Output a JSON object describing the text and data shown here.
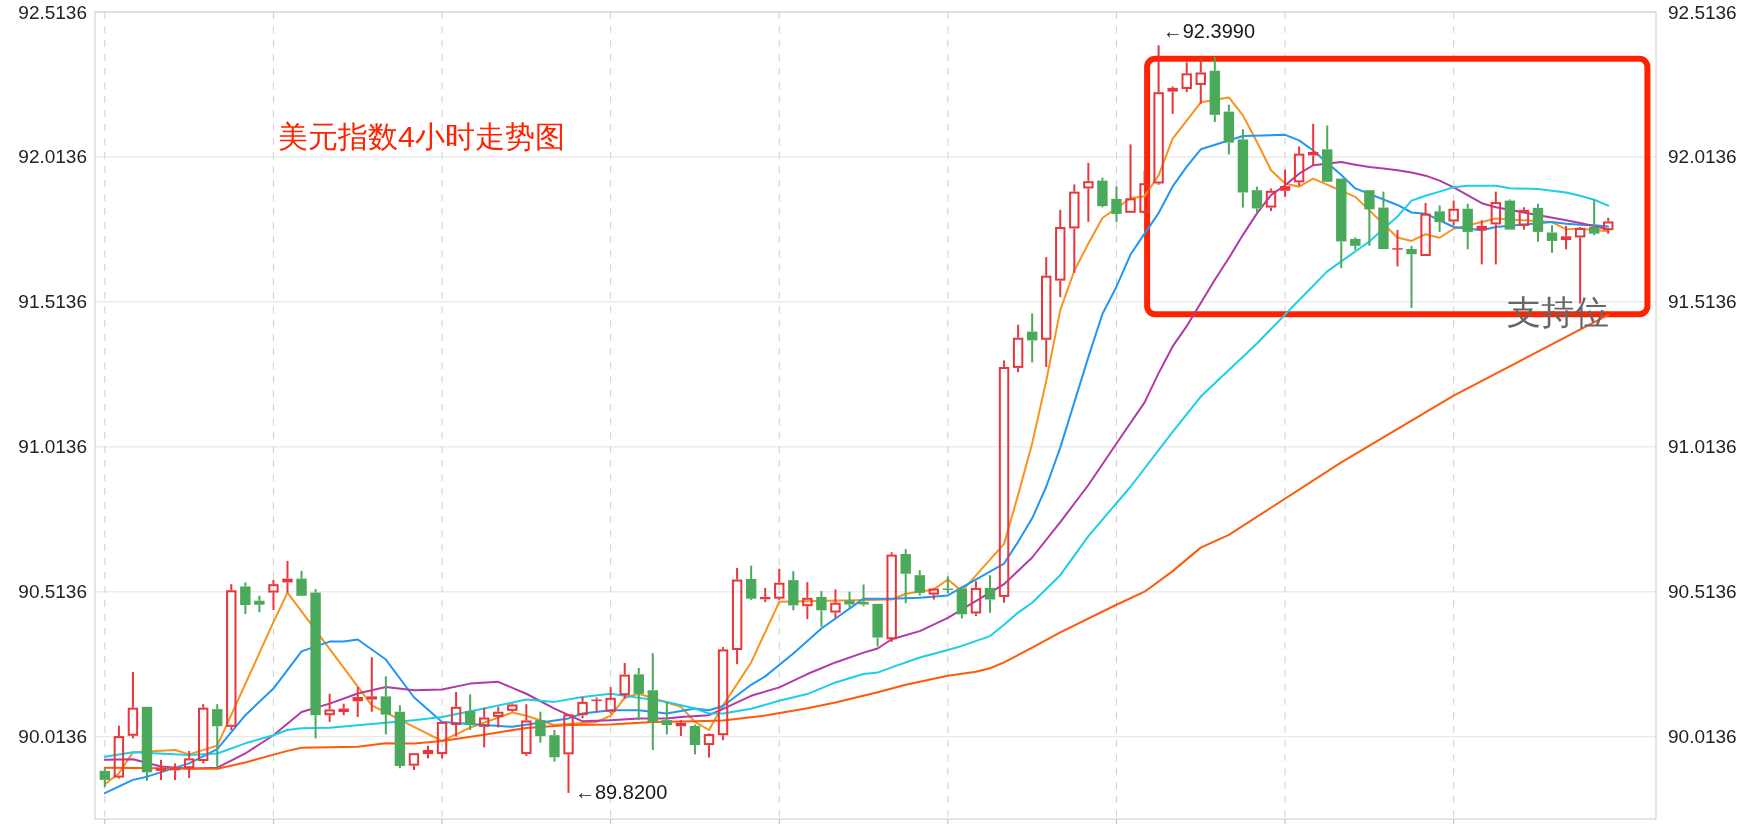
{
  "chart_data": {
    "type": "candlestick",
    "title": "美元指数4小时走势图",
    "categories": [
      null,
      null,
      null,
      null,
      null,
      null,
      null,
      null,
      null,
      null,
      null,
      null,
      null,
      null,
      null,
      null,
      null,
      null,
      null,
      null,
      null,
      null,
      null,
      null,
      null,
      null,
      null,
      null,
      null,
      null,
      null,
      null,
      null,
      null,
      null,
      null,
      null,
      null,
      null,
      null,
      null,
      null,
      null,
      null,
      null,
      null,
      null,
      null,
      null,
      null,
      null,
      null,
      null,
      null,
      null,
      null,
      null,
      null,
      null,
      null,
      null,
      null,
      null,
      null,
      null,
      null,
      null,
      null,
      null,
      null,
      null,
      null,
      null,
      null,
      null,
      null,
      null,
      null,
      null,
      null,
      null,
      null,
      null,
      null,
      null,
      null,
      null,
      null,
      null,
      null,
      null,
      null,
      null,
      null,
      null,
      null,
      null,
      null,
      null,
      null,
      null,
      null,
      null,
      null,
      null,
      null,
      null,
      null
    ],
    "ylim": [
      89.73,
      92.5136
    ],
    "yticks": [
      90.0136,
      90.5136,
      91.0136,
      91.5136,
      92.0136,
      92.5136
    ],
    "y2lim": [
      89.73,
      92.5136
    ],
    "y2ticks": [
      90.0136,
      90.5136,
      91.0136,
      91.5136,
      92.0136,
      92.5136
    ],
    "tick_labels": "y",
    "grid": true,
    "ohlc": [
      [
        89.896,
        89.905,
        89.84,
        89.865
      ],
      [
        89.873,
        90.052,
        89.869,
        90.016
      ],
      [
        90.017,
        90.237,
        90.008,
        90.114
      ],
      [
        90.117,
        90.117,
        89.862,
        89.891
      ],
      [
        89.896,
        89.934,
        89.864,
        89.905
      ],
      [
        89.898,
        89.922,
        89.864,
        89.905
      ],
      [
        89.905,
        89.965,
        89.871,
        89.939
      ],
      [
        89.93,
        90.126,
        89.922,
        90.114
      ],
      [
        90.109,
        90.126,
        89.907,
        90.05
      ],
      [
        90.048,
        90.54,
        90.037,
        90.519
      ],
      [
        90.532,
        90.546,
        90.437,
        90.468
      ],
      [
        90.483,
        90.5,
        90.443,
        90.469
      ],
      [
        90.511,
        90.555,
        90.451,
        90.54
      ],
      [
        90.546,
        90.62,
        90.511,
        90.559
      ],
      [
        90.559,
        90.586,
        90.5,
        90.5
      ],
      [
        90.511,
        90.523,
        90.008,
        90.088
      ],
      [
        90.088,
        90.162,
        90.065,
        90.108
      ],
      [
        90.099,
        90.128,
        90.088,
        90.111
      ],
      [
        90.136,
        90.185,
        90.082,
        90.151
      ],
      [
        90.142,
        90.288,
        90.1,
        90.153
      ],
      [
        90.153,
        90.222,
        90.022,
        90.09
      ],
      [
        90.1,
        90.122,
        89.905,
        89.913
      ],
      [
        89.914,
        89.957,
        89.899,
        89.957
      ],
      [
        89.954,
        89.983,
        89.939,
        89.968
      ],
      [
        89.954,
        90.065,
        89.939,
        90.065
      ],
      [
        90.054,
        90.168,
        90.014,
        90.117
      ],
      [
        90.102,
        90.16,
        90.037,
        90.054
      ],
      [
        90.048,
        90.114,
        89.977,
        90.08
      ],
      [
        90.082,
        90.117,
        90.046,
        90.1
      ],
      [
        90.103,
        90.128,
        90.1,
        90.125
      ],
      [
        89.954,
        90.126,
        89.947,
        90.07
      ],
      [
        90.071,
        90.1,
        89.993,
        90.016
      ],
      [
        90.019,
        90.037,
        89.928,
        89.943
      ],
      [
        89.953,
        90.091,
        89.82,
        90.091
      ],
      [
        90.088,
        90.151,
        90.077,
        90.134
      ],
      [
        90.138,
        90.149,
        90.1,
        90.142
      ],
      [
        90.1,
        90.185,
        90.094,
        90.148
      ],
      [
        90.157,
        90.268,
        90.145,
        90.228
      ],
      [
        90.229,
        90.251,
        90.071,
        90.162
      ],
      [
        90.174,
        90.302,
        89.968,
        90.065
      ],
      [
        90.071,
        90.134,
        90.022,
        90.054
      ],
      [
        90.05,
        90.071,
        90.016,
        90.062
      ],
      [
        90.051,
        90.056,
        89.953,
        89.985
      ],
      [
        89.985,
        90.025,
        89.942,
        90.023
      ],
      [
        90.019,
        90.323,
        90.002,
        90.315
      ],
      [
        90.313,
        90.596,
        90.264,
        90.556
      ],
      [
        90.558,
        90.604,
        90.485,
        90.49
      ],
      [
        90.488,
        90.527,
        90.478,
        90.496
      ],
      [
        90.49,
        90.593,
        90.485,
        90.545
      ],
      [
        90.554,
        90.585,
        90.45,
        90.467
      ],
      [
        90.464,
        90.547,
        90.419,
        90.493
      ],
      [
        90.496,
        90.516,
        90.393,
        90.45
      ],
      [
        90.442,
        90.522,
        90.424,
        90.476
      ],
      [
        90.484,
        90.514,
        90.459,
        90.47
      ],
      [
        90.479,
        90.539,
        90.464,
        90.47
      ],
      [
        90.472,
        90.472,
        90.325,
        90.356
      ],
      [
        90.35,
        90.65,
        90.341,
        90.642
      ],
      [
        90.644,
        90.661,
        90.474,
        90.576
      ],
      [
        90.571,
        90.588,
        90.501,
        90.51
      ],
      [
        90.504,
        90.527,
        90.487,
        90.525
      ],
      [
        90.525,
        90.567,
        90.508,
        90.522
      ],
      [
        90.525,
        90.533,
        90.422,
        90.436
      ],
      [
        90.439,
        90.55,
        90.43,
        90.527
      ],
      [
        90.527,
        90.571,
        90.441,
        90.487
      ],
      [
        90.496,
        91.312,
        90.476,
        91.289
      ],
      [
        91.286,
        91.435,
        91.271,
        91.39
      ],
      [
        91.411,
        91.474,
        91.305,
        91.381
      ],
      [
        91.383,
        91.668,
        91.289,
        91.604
      ],
      [
        91.587,
        91.831,
        91.53,
        91.772
      ],
      [
        91.767,
        91.919,
        91.614,
        91.894
      ],
      [
        91.905,
        91.993,
        91.79,
        91.93
      ],
      [
        91.932,
        91.942,
        91.84,
        91.844
      ],
      [
        91.869,
        91.912,
        91.79,
        91.817
      ],
      [
        91.821,
        92.057,
        91.821,
        91.871
      ],
      [
        91.821,
        91.966,
        91.817,
        91.923
      ],
      [
        91.922,
        92.399,
        91.918,
        92.237
      ],
      [
        92.239,
        92.257,
        92.162,
        92.252
      ],
      [
        92.248,
        92.34,
        92.237,
        92.302
      ],
      [
        92.262,
        92.354,
        92.197,
        92.305
      ],
      [
        92.311,
        92.359,
        92.134,
        92.159
      ],
      [
        92.17,
        92.194,
        92.022,
        92.063
      ],
      [
        92.074,
        92.109,
        91.839,
        91.891
      ],
      [
        91.899,
        91.911,
        91.819,
        91.836
      ],
      [
        91.839,
        91.905,
        91.827,
        91.897
      ],
      [
        91.897,
        91.97,
        91.876,
        91.913
      ],
      [
        91.926,
        92.05,
        91.914,
        92.025
      ],
      [
        92.019,
        92.128,
        91.985,
        92.031
      ],
      [
        92.04,
        92.122,
        91.928,
        91.928
      ],
      [
        91.939,
        91.939,
        91.63,
        91.722
      ],
      [
        91.731,
        91.736,
        91.693,
        91.707
      ],
      [
        91.899,
        91.899,
        91.707,
        91.833
      ],
      [
        91.839,
        91.894,
        91.696,
        91.696
      ],
      [
        91.696,
        91.762,
        91.636,
        91.699
      ],
      [
        91.696,
        91.707,
        91.493,
        91.678
      ],
      [
        91.672,
        91.855,
        91.672,
        91.818
      ],
      [
        91.826,
        91.846,
        91.755,
        91.789
      ],
      [
        91.791,
        91.863,
        91.778,
        91.835
      ],
      [
        91.835,
        91.852,
        91.695,
        91.755
      ],
      [
        91.761,
        91.795,
        91.643,
        91.776
      ],
      [
        91.781,
        91.894,
        91.643,
        91.858
      ],
      [
        91.863,
        91.867,
        91.763,
        91.763
      ],
      [
        91.776,
        91.84,
        91.763,
        91.831
      ],
      [
        91.838,
        91.852,
        91.721,
        91.755
      ],
      [
        91.753,
        91.778,
        91.683,
        91.724
      ],
      [
        91.727,
        91.776,
        91.695,
        91.74
      ],
      [
        91.736,
        91.772,
        91.508,
        91.769
      ],
      [
        91.772,
        91.866,
        91.744,
        91.749
      ],
      [
        91.761,
        91.804,
        91.749,
        91.791
      ]
    ],
    "colors": [
      "#4aa95a",
      "#e8363c",
      "#e8363c",
      "#4aa95a",
      "#e8363c",
      "#e8363c",
      "#e8363c",
      "#e8363c",
      "#4aa95a",
      "#e8363c",
      "#4aa95a",
      "#4aa95a",
      "#e8363c",
      "#e8363c",
      "#4aa95a",
      "#4aa95a",
      "#e8363c",
      "#e8363c",
      "#e8363c",
      "#e8363c",
      "#4aa95a",
      "#4aa95a",
      "#e8363c",
      "#e8363c",
      "#e8363c",
      "#e8363c",
      "#4aa95a",
      "#e8363c",
      "#e8363c",
      "#e8363c",
      "#e8363c",
      "#4aa95a",
      "#4aa95a",
      "#e8363c",
      "#e8363c",
      "#e8363c",
      "#e8363c",
      "#e8363c",
      "#4aa95a",
      "#4aa95a",
      "#4aa95a",
      "#e8363c",
      "#4aa95a",
      "#e8363c",
      "#e8363c",
      "#e8363c",
      "#4aa95a",
      "#e8363c",
      "#e8363c",
      "#4aa95a",
      "#e8363c",
      "#4aa95a",
      "#e8363c",
      "#4aa95a",
      "#4aa95a",
      "#4aa95a",
      "#e8363c",
      "#4aa95a",
      "#4aa95a",
      "#e8363c",
      "#4aa95a",
      "#4aa95a",
      "#e8363c",
      "#4aa95a",
      "#e8363c",
      "#e8363c",
      "#4aa95a",
      "#e8363c",
      "#e8363c",
      "#e8363c",
      "#e8363c",
      "#4aa95a",
      "#4aa95a",
      "#e8363c",
      "#e8363c",
      "#e8363c",
      "#e8363c",
      "#e8363c",
      "#e8363c",
      "#4aa95a",
      "#4aa95a",
      "#4aa95a",
      "#4aa95a",
      "#e8363c",
      "#e8363c",
      "#e8363c",
      "#e8363c",
      "#4aa95a",
      "#4aa95a",
      "#4aa95a",
      "#4aa95a",
      "#4aa95a",
      "#e8363c",
      "#4aa95a",
      "#e8363c",
      "#4aa95a",
      "#e8363c",
      "#4aa95a",
      "#e8363c",
      "#e8363c",
      "#4aa95a",
      "#e8363c",
      "#4aa95a",
      "#4aa95a",
      "#e8363c",
      "#e8363c",
      "#4aa95a",
      "#e8363c"
    ],
    "series": [
      {
        "type": "line",
        "color": "#f7931e",
        "values": [
          89.85,
          89.888,
          89.96,
          null,
          null,
          89.968,
          89.953,
          null,
          89.983,
          null,
          null,
          null,
          90.409,
          90.511,
          null,
          null,
          null,
          null,
          null,
          90.122,
          null,
          null,
          90.048,
          null,
          89.999,
          null,
          90.045,
          null,
          null,
          90.097,
          90.086,
          null,
          90.054,
          null,
          null,
          90.065,
          90.086,
          90.148,
          90.162,
          null,
          null,
          90.117,
          90.065,
          90.037,
          90.122,
          null,
          90.27,
          null,
          90.479,
          null,
          null,
          null,
          null,
          null,
          null,
          null,
          90.487,
          90.507,
          null,
          90.522,
          90.556,
          90.516,
          null,
          null,
          90.679,
          90.848,
          91.025,
          91.241,
          91.485,
          91.621,
          91.715,
          91.803,
          null,
          91.871,
          91.878,
          91.95,
          92.077,
          92.139,
          92.202,
          null,
          92.219,
          92.157,
          92.065,
          91.968,
          91.922,
          91.911,
          91.939,
          null,
          null,
          91.876,
          null,
          null,
          91.736,
          91.724,
          91.747,
          91.735,
          91.766,
          null,
          91.789,
          91.801,
          null,
          null,
          null,
          91.789,
          91.764,
          91.766,
          null,
          91.757
        ]
      },
      {
        "type": "line",
        "color": "#2196f3",
        "values": [
          89.819,
          null,
          89.865,
          89.876,
          null,
          null,
          89.922,
          null,
          89.971,
          null,
          90.088,
          null,
          90.18,
          null,
          90.308,
          null,
          90.342,
          90.342,
          90.349,
          null,
          90.28,
          null,
          90.15,
          null,
          90.065,
          null,
          null,
          null,
          null,
          90.048,
          null,
          null,
          null,
          90.077,
          90.094,
          null,
          90.105,
          null,
          90.105,
          null,
          90.094,
          null,
          90.111,
          90.105,
          90.12,
          null,
          90.193,
          90.222,
          null,
          90.301,
          null,
          90.387,
          null,
          null,
          90.49,
          null,
          90.49,
          null,
          90.493,
          null,
          90.501,
          null,
          null,
          null,
          90.611,
          90.686,
          90.767,
          90.876,
          91.011,
          91.167,
          91.323,
          91.472,
          91.566,
          91.677,
          91.749,
          91.82,
          91.912,
          91.98,
          92.04,
          null,
          null,
          92.086,
          null,
          null,
          92.09,
          92.071,
          92.036,
          null,
          91.951,
          91.905,
          null,
          null,
          91.848,
          91.822,
          91.818,
          null,
          91.772,
          null,
          91.761,
          91.772,
          null,
          null,
          null,
          91.789,
          91.783,
          91.78,
          91.778,
          91.774
        ]
      },
      {
        "type": "line",
        "color": "#b23aa6",
        "values": [
          89.934,
          null,
          89.936,
          null,
          89.911,
          null,
          89.903,
          null,
          89.907,
          null,
          89.956,
          null,
          90.019,
          null,
          90.099,
          null,
          90.128,
          null,
          90.163,
          null,
          90.185,
          null,
          90.174,
          null,
          90.177,
          null,
          90.197,
          null,
          90.203,
          null,
          90.162,
          null,
          90.111,
          null,
          90.067,
          null,
          90.071,
          null,
          90.077,
          null,
          90.077,
          90.082,
          null,
          90.088,
          90.11,
          null,
          90.155,
          null,
          90.184,
          null,
          90.23,
          null,
          90.27,
          null,
          90.304,
          90.318,
          90.35,
          null,
          90.378,
          null,
          90.424,
          null,
          null,
          null,
          90.54,
          null,
          90.632,
          null,
          90.754,
          null,
          90.882,
          null,
          91.025,
          null,
          91.167,
          91.268,
          91.36,
          91.43,
          91.51,
          91.59,
          91.665,
          91.745,
          91.819,
          91.882,
          91.916,
          91.956,
          91.985,
          null,
          91.996,
          91.987,
          91.979,
          91.974,
          91.968,
          91.96,
          91.949,
          91.932,
          91.909,
          null,
          91.854,
          91.84,
          null,
          null,
          null,
          null,
          91.795,
          91.786,
          null,
          91.764
        ]
      },
      {
        "type": "line",
        "color": "#1ccfe6",
        "values": [
          89.945,
          null,
          89.96,
          null,
          null,
          null,
          89.951,
          null,
          89.956,
          null,
          89.991,
          null,
          90.019,
          90.037,
          90.043,
          null,
          90.045,
          null,
          null,
          null,
          90.062,
          null,
          90.071,
          null,
          90.082,
          null,
          null,
          90.111,
          null,
          null,
          90.142,
          null,
          90.134,
          null,
          90.151,
          null,
          90.162,
          null,
          null,
          null,
          90.134,
          null,
          90.111,
          90.094,
          90.094,
          null,
          90.11,
          null,
          90.138,
          null,
          90.161,
          null,
          90.201,
          null,
          90.23,
          90.235,
          90.253,
          null,
          90.287,
          null,
          90.313,
          90.327,
          null,
          90.361,
          90.4,
          90.442,
          90.476,
          null,
          90.571,
          null,
          90.706,
          null,
          null,
          90.876,
          null,
          null,
          91.065,
          null,
          91.187,
          null,
          null,
          null,
          91.37,
          null,
          91.47,
          null,
          null,
          91.619,
          null,
          null,
          91.722,
          null,
          91.808,
          91.863,
          91.88,
          91.894,
          91.909,
          91.914,
          null,
          91.914,
          91.906,
          null,
          91.903,
          null,
          91.891,
          91.88,
          91.866,
          91.846
        ]
      },
      {
        "type": "line",
        "color": "#ff5a0a",
        "values": [
          89.907,
          null,
          null,
          null,
          null,
          null,
          null,
          null,
          89.903,
          null,
          89.925,
          null,
          null,
          89.965,
          89.976,
          null,
          null,
          null,
          89.979,
          null,
          89.991,
          null,
          89.99,
          null,
          89.999,
          null,
          null,
          90.021,
          null,
          null,
          90.044,
          null,
          null,
          90.054,
          null,
          null,
          90.056,
          null,
          null,
          90.065,
          null,
          null,
          90.067,
          null,
          90.07,
          null,
          null,
          90.087,
          null,
          null,
          90.112,
          null,
          90.132,
          null,
          null,
          90.167,
          null,
          90.193,
          null,
          null,
          90.224,
          null,
          90.238,
          90.25,
          90.27,
          null,
          90.321,
          null,
          90.374,
          null,
          null,
          null,
          90.469,
          null,
          90.514,
          null,
          90.585,
          null,
          90.666,
          null,
          90.71,
          null,
          null,
          null,
          null,
          null,
          null,
          null,
          90.96,
          null,
          null,
          null,
          null,
          null,
          null,
          null,
          91.19,
          null,
          null,
          null,
          null,
          null,
          null,
          null,
          null,
          null,
          null,
          91.469
        ]
      }
    ],
    "annotations": [
      "←92.3990",
      "←89.8200",
      "支持位"
    ]
  }
}
